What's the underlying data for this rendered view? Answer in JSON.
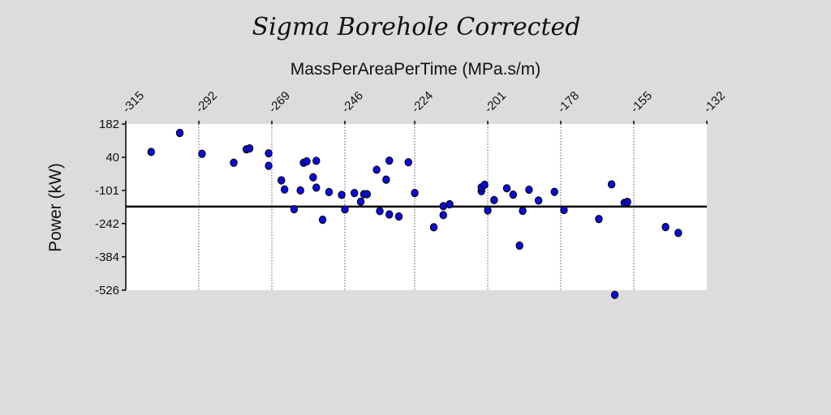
{
  "chart_data": {
    "type": "scatter",
    "title": "Sigma Borehole Corrected",
    "xlabel": "MassPerAreaPerTime (MPa.s/m)",
    "ylabel": "Power (kW)",
    "x_ticks": [
      "-315",
      "-292",
      "-269",
      "-246",
      "-224",
      "-201",
      "-178",
      "-155",
      "-132"
    ],
    "y_ticks": [
      "182",
      "40",
      "-101",
      "-242",
      "-384",
      "-526"
    ],
    "xlim": [
      -315,
      -132
    ],
    "ylim": [
      -526,
      182
    ],
    "x_axis_position": "top",
    "grid": "vertical dotted",
    "reference_line_y": -170,
    "colors": {
      "point_fill": "#0a0ad8",
      "point_stroke": "#000000",
      "plot_bg": "#ffffff",
      "page_bg": "#dcdcdc"
    },
    "points": [
      {
        "x": -307,
        "y": 63
      },
      {
        "x": -298,
        "y": 144
      },
      {
        "x": -291,
        "y": 55
      },
      {
        "x": -281,
        "y": 17
      },
      {
        "x": -277,
        "y": 74
      },
      {
        "x": -276,
        "y": 78
      },
      {
        "x": -270,
        "y": 57
      },
      {
        "x": -270,
        "y": 4
      },
      {
        "x": -266,
        "y": -58
      },
      {
        "x": -265,
        "y": -97
      },
      {
        "x": -262,
        "y": -181
      },
      {
        "x": -260,
        "y": -101
      },
      {
        "x": -259,
        "y": 17
      },
      {
        "x": -258,
        "y": 23
      },
      {
        "x": -256,
        "y": -45
      },
      {
        "x": -255,
        "y": 25
      },
      {
        "x": -255,
        "y": -89
      },
      {
        "x": -253,
        "y": -226
      },
      {
        "x": -251,
        "y": -108
      },
      {
        "x": -247,
        "y": -120
      },
      {
        "x": -246,
        "y": -182
      },
      {
        "x": -243,
        "y": -112
      },
      {
        "x": -241,
        "y": -149
      },
      {
        "x": -240,
        "y": -117
      },
      {
        "x": -239,
        "y": -117
      },
      {
        "x": -236,
        "y": -13
      },
      {
        "x": -235,
        "y": -189
      },
      {
        "x": -233,
        "y": -55
      },
      {
        "x": -232,
        "y": -203
      },
      {
        "x": -232,
        "y": 26
      },
      {
        "x": -229,
        "y": -212
      },
      {
        "x": -226,
        "y": 19
      },
      {
        "x": -224,
        "y": -112
      },
      {
        "x": -218,
        "y": -258
      },
      {
        "x": -215,
        "y": -168
      },
      {
        "x": -215,
        "y": -206
      },
      {
        "x": -213,
        "y": -160
      },
      {
        "x": -203,
        "y": -104
      },
      {
        "x": -203,
        "y": -88
      },
      {
        "x": -202,
        "y": -77
      },
      {
        "x": -201,
        "y": -186
      },
      {
        "x": -199,
        "y": -142
      },
      {
        "x": -195,
        "y": -92
      },
      {
        "x": -193,
        "y": -119
      },
      {
        "x": -191,
        "y": -336
      },
      {
        "x": -190,
        "y": -188
      },
      {
        "x": -188,
        "y": -98
      },
      {
        "x": -185,
        "y": -144
      },
      {
        "x": -180,
        "y": -107
      },
      {
        "x": -177,
        "y": -184
      },
      {
        "x": -166,
        "y": -223
      },
      {
        "x": -162,
        "y": -75
      },
      {
        "x": -161,
        "y": -546
      },
      {
        "x": -158,
        "y": -154
      },
      {
        "x": -157,
        "y": -150
      },
      {
        "x": -145,
        "y": -257
      },
      {
        "x": -141,
        "y": -282
      }
    ]
  }
}
